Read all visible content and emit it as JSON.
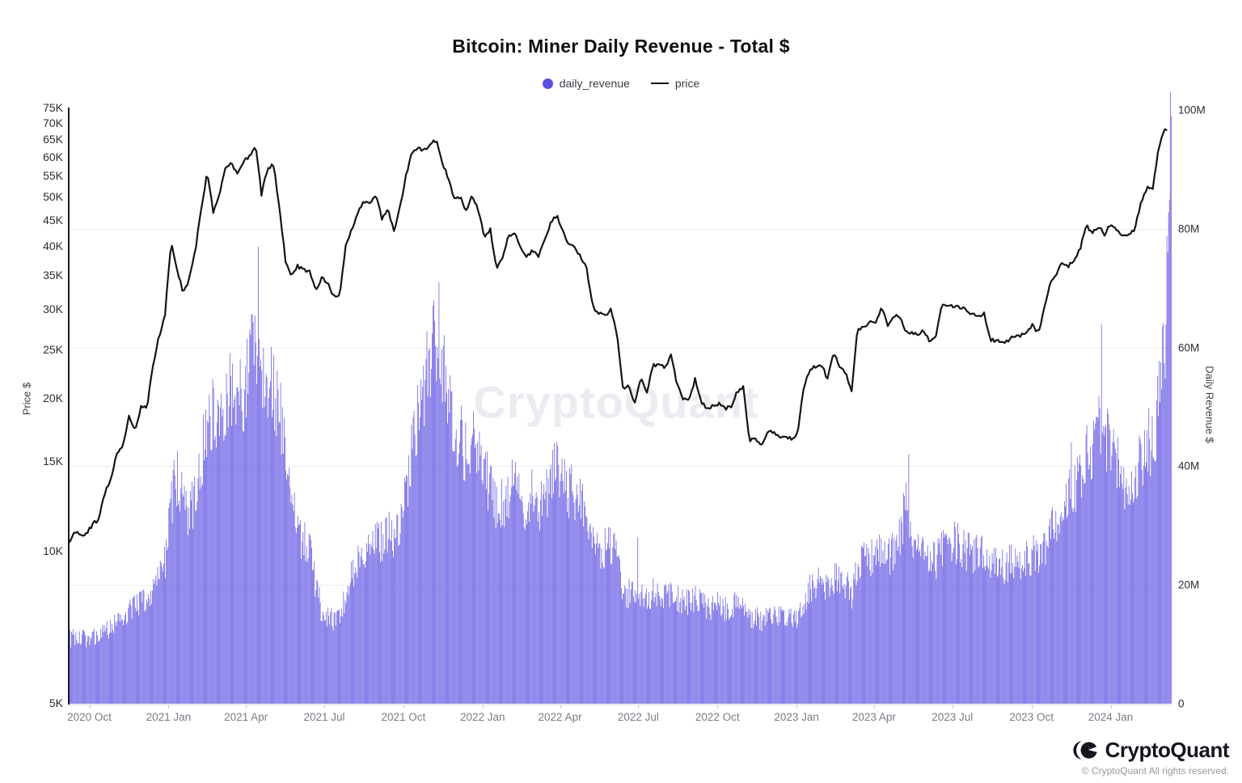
{
  "header": {
    "title": "Bitcoin: Miner Daily Revenue - Total $"
  },
  "legend": {
    "items": [
      {
        "label": "daily_revenue",
        "swatch": "dot",
        "color": "#5b50e1"
      },
      {
        "label": "price",
        "swatch": "line",
        "color": "#141414"
      }
    ]
  },
  "watermark": {
    "text": "CryptoQuant"
  },
  "axes": {
    "left": {
      "title": "Price $",
      "scale": "log",
      "ticks": [
        {
          "label": "75K",
          "value": 75
        },
        {
          "label": "70K",
          "value": 70
        },
        {
          "label": "65K",
          "value": 65
        },
        {
          "label": "60K",
          "value": 60
        },
        {
          "label": "55K",
          "value": 55
        },
        {
          "label": "50K",
          "value": 50
        },
        {
          "label": "45K",
          "value": 45
        },
        {
          "label": "40K",
          "value": 40
        },
        {
          "label": "35K",
          "value": 35
        },
        {
          "label": "30K",
          "value": 30
        },
        {
          "label": "25K",
          "value": 25
        },
        {
          "label": "20K",
          "value": 20
        },
        {
          "label": "15K",
          "value": 15
        },
        {
          "label": "10K",
          "value": 10
        },
        {
          "label": "5K",
          "value": 5
        }
      ]
    },
    "right": {
      "title": "Daily Revenue $",
      "scale": "linear",
      "ticks": [
        {
          "label": "100M",
          "value": 100
        },
        {
          "label": "80M",
          "value": 80
        },
        {
          "label": "60M",
          "value": 60
        },
        {
          "label": "40M",
          "value": 40
        },
        {
          "label": "20M",
          "value": 20
        },
        {
          "label": "0",
          "value": 0
        }
      ]
    },
    "bottom": {
      "ticks": [
        {
          "label": "2020 Oct",
          "date": "2020-10-01"
        },
        {
          "label": "2021 Jan",
          "date": "2021-01-01"
        },
        {
          "label": "2021 Apr",
          "date": "2021-04-01"
        },
        {
          "label": "2021 Jul",
          "date": "2021-07-01"
        },
        {
          "label": "2021 Oct",
          "date": "2021-10-01"
        },
        {
          "label": "2022 Jan",
          "date": "2022-01-01"
        },
        {
          "label": "2022 Apr",
          "date": "2022-04-01"
        },
        {
          "label": "2022 Jul",
          "date": "2022-07-01"
        },
        {
          "label": "2022 Oct",
          "date": "2022-10-01"
        },
        {
          "label": "2023 Jan",
          "date": "2023-01-01"
        },
        {
          "label": "2023 Apr",
          "date": "2023-04-01"
        },
        {
          "label": "2023 Jul",
          "date": "2023-07-01"
        },
        {
          "label": "2023 Oct",
          "date": "2023-10-01"
        },
        {
          "label": "2024 Jan",
          "date": "2024-01-01"
        }
      ]
    }
  },
  "footer": {
    "brand": "CryptoQuant",
    "copyright": "© CryptoQuant All rights reserved."
  },
  "colors": {
    "bar": "#5b50e1",
    "price_line": "#141414",
    "grid": "#ededf2",
    "axis_text": "#2c2c34",
    "x_axis_text": "#7c7c86",
    "watermark": "#ebebf1"
  },
  "chart_data": {
    "type": "bar+line",
    "title": "Bitcoin: Miner Daily Revenue - Total $",
    "start_date": "2020-09-07",
    "interval_days": 7,
    "left_axis_range_usd": [
      5000,
      75000
    ],
    "right_axis_range_musd": [
      0,
      100
    ],
    "grid": "horizontal-right-axis",
    "legend_position": "top-center",
    "series": [
      {
        "name": "daily_revenue",
        "type": "bar",
        "axis": "right",
        "unit": "M USD per day",
        "values": [
          10.8,
          11.2,
          10.9,
          11,
          11.2,
          11.5,
          12.2,
          13,
          14,
          14.6,
          15.8,
          16.3,
          17.4,
          17.2,
          19.2,
          21.8,
          24.5,
          34,
          38,
          33,
          32,
          35,
          42,
          48,
          50,
          47,
          52,
          54,
          51,
          53,
          57,
          63,
          58,
          55,
          54,
          50,
          42,
          33,
          29,
          27,
          26,
          20,
          15.5,
          14.5,
          14,
          15,
          18,
          22,
          24,
          26,
          27,
          28,
          27,
          29,
          27,
          31,
          36,
          43,
          48,
          53,
          58,
          62,
          56,
          51,
          47,
          45,
          42,
          44,
          42,
          37,
          38,
          33,
          34,
          36,
          37,
          35,
          33,
          35,
          33,
          35,
          38,
          39,
          37,
          35,
          36,
          34,
          32,
          28,
          26,
          26,
          27,
          24,
          19,
          18.5,
          18,
          18,
          17,
          18.5,
          18.5,
          18,
          19,
          17.5,
          17,
          17,
          18,
          17,
          16,
          16.5,
          16.5,
          16,
          16,
          17,
          17.5,
          14.5,
          14.5,
          14,
          15,
          15,
          14.5,
          14.5,
          14,
          14.8,
          17.5,
          19.5,
          20,
          20.5,
          19.5,
          21.5,
          21,
          20.5,
          18.5,
          23.5,
          24,
          24.5,
          24,
          26,
          24.5,
          26,
          29,
          34,
          28,
          26.5,
          26,
          24.5,
          24,
          26.5,
          27,
          27,
          27,
          26,
          25.5,
          25,
          25.5,
          23.5,
          23,
          23,
          23.5,
          24,
          24,
          24.5,
          25,
          24.5,
          26.5,
          30,
          31.5,
          34,
          36.5,
          36,
          37.5,
          42,
          43.5,
          50,
          45,
          43,
          41,
          38,
          36.5,
          38,
          41,
          44.5,
          44,
          51,
          60,
          99
        ]
      },
      {
        "name": "price",
        "type": "line",
        "axis": "left",
        "unit": "K USD",
        "values": [
          10.3,
          10.9,
          10.7,
          10.8,
          11.3,
          11.5,
          13,
          13.8,
          15.5,
          16.1,
          18.4,
          17.2,
          19.2,
          19.2,
          23.2,
          26.5,
          29,
          40.6,
          35.9,
          32.2,
          34.3,
          38.9,
          47,
          55.9,
          46.3,
          50.3,
          57.2,
          58,
          55.3,
          58.7,
          59.9,
          63.2,
          50.5,
          56.9,
          57.8,
          47,
          37.3,
          35,
          36.5,
          35.8,
          35.6,
          32.5,
          34.6,
          33.7,
          31.8,
          32.1,
          40,
          43.2,
          46.4,
          48.9,
          48.9,
          50.3,
          45.2,
          47.3,
          42.7,
          47.5,
          54.9,
          61.5,
          62.2,
          61.7,
          63.2,
          64.8,
          58.6,
          54.4,
          49.8,
          50,
          46.9,
          50.4,
          47.1,
          41.7,
          43,
          36.2,
          37.9,
          41.6,
          42.4,
          40,
          37.9,
          39.3,
          38,
          41.1,
          44.3,
          46,
          42.8,
          40.3,
          39.7,
          38.2,
          35.9,
          30.3,
          29.5,
          29.1,
          29.9,
          27,
          20.9,
          21.2,
          19.5,
          21.8,
          20.5,
          23.2,
          23.3,
          23,
          24.3,
          21.3,
          20,
          19.8,
          21.8,
          19.7,
          19,
          19.4,
          19.5,
          19.1,
          19.2,
          20.6,
          21,
          16.5,
          16.7,
          16.2,
          17,
          17.2,
          16.8,
          16.8,
          16.6,
          16.9,
          20.9,
          22.7,
          23.1,
          23.3,
          21.8,
          24.6,
          23.2,
          22.4,
          20.5,
          27.4,
          27.5,
          28.4,
          28,
          30.4,
          27.6,
          29.2,
          28.9,
          27,
          26.9,
          26.8,
          27.2,
          25.9,
          26.4,
          30.5,
          30.5,
          30.2,
          30.3,
          29.9,
          29.3,
          29.1,
          29.4,
          26.1,
          26,
          25.9,
          25.9,
          26.6,
          26.6,
          27,
          27.9,
          26.9,
          30,
          34.1,
          35.1,
          37.1,
          36.5,
          37.4,
          39.7,
          43.8,
          42.3,
          43.7,
          42.2,
          44.2,
          42.9,
          41.6,
          42,
          43.1,
          48.2,
          52,
          51.7,
          62.5,
          68,
          67
        ]
      }
    ],
    "notable_spikes_daily_revenue": [
      {
        "week_index": 17,
        "value": 41
      },
      {
        "week_index": 31,
        "value": 77
      },
      {
        "week_index": 61,
        "value": 71
      },
      {
        "week_index": 94,
        "value": 28
      },
      {
        "week_index": 139,
        "value": 42
      },
      {
        "week_index": 166,
        "value": 44
      },
      {
        "week_index": 171,
        "value": 64
      },
      {
        "week_index": 182,
        "value": 76
      },
      {
        "week_index": 183,
        "value": 99
      }
    ]
  }
}
